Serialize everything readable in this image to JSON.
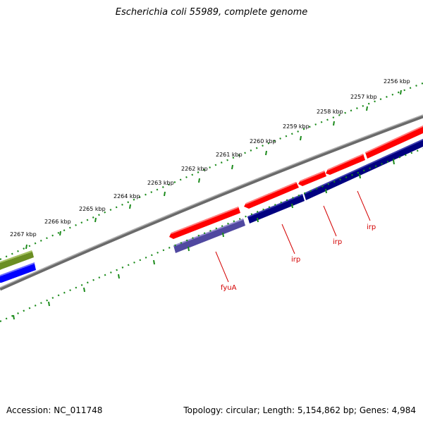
{
  "title": "Escherichia coli 55989, complete genome",
  "footer": {
    "accession": "Accession: NC_011748",
    "summary": "Topology: circular; Length: 5,154,862 bp; Genes: 4,984"
  },
  "kbp_labels": [
    "2267 kbp",
    "2266 kbp",
    "2265 kbp",
    "2264 kbp",
    "2263 kbp",
    "2262 kbp",
    "2261 kbp",
    "2260 kbp",
    "2259 kbp",
    "2258 kbp",
    "2257 kbp",
    "2256 kbp"
  ],
  "gene_labels": [
    "fyuA",
    "irp",
    "irp",
    "irp"
  ],
  "colors": {
    "backbone": "#808080",
    "ruler": "#1a8a1a",
    "forward_cds": "#ff0000",
    "reverse_cds_dark": "#000080",
    "reverse_cds_light": "#5048a0",
    "other_green": "#6b8e23",
    "other_blue": "#0000ff",
    "label": "#d40000"
  }
}
